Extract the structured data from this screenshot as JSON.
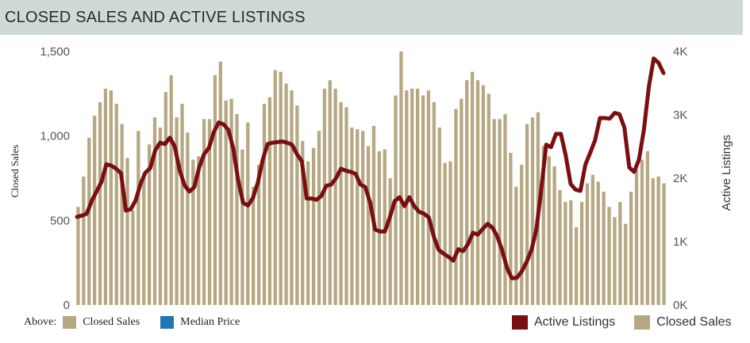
{
  "header": {
    "title": "CLOSED SALES AND ACTIVE LISTINGS"
  },
  "legend": {
    "above_label": "Above:",
    "left_items": [
      {
        "label": "Closed Sales",
        "color": "#b5a882"
      },
      {
        "label": "Median Price",
        "color": "#1f77b4"
      }
    ],
    "right_items": [
      {
        "label": "Active Listings",
        "color": "#7a0f12"
      },
      {
        "label": "Closed Sales",
        "color": "#b5a882"
      }
    ]
  },
  "chart_data": {
    "type": "bar",
    "title": "",
    "ylabel_left": "Closed Sales",
    "ylabel_right": "Active Listings",
    "y_left_ticks": [
      "0",
      "500",
      "1,000",
      "1,500"
    ],
    "y_right_ticks": [
      "0K",
      "1K",
      "2K",
      "3K",
      "4K"
    ],
    "ylim_left": [
      0,
      1500
    ],
    "ylim_right": [
      0,
      4000
    ],
    "grid": false,
    "series": [
      {
        "name": "Closed Sales",
        "type": "bar",
        "axis": "left",
        "color": "#b5a882",
        "values": [
          580,
          760,
          990,
          1120,
          1200,
          1280,
          1270,
          1190,
          1070,
          870,
          560,
          1030,
          780,
          950,
          1110,
          1050,
          1260,
          1360,
          1110,
          1190,
          1020,
          860,
          880,
          1100,
          1100,
          1360,
          1440,
          1210,
          1220,
          1130,
          920,
          1080,
          700,
          830,
          1190,
          1230,
          1390,
          1380,
          1310,
          1270,
          1180,
          970,
          850,
          930,
          1030,
          1280,
          1330,
          1280,
          1200,
          1170,
          1050,
          1040,
          1030,
          940,
          1060,
          910,
          920,
          750,
          1240,
          1500,
          1270,
          1280,
          1280,
          1240,
          1270,
          1200,
          1050,
          840,
          850,
          1160,
          1220,
          1330,
          1380,
          1330,
          1300,
          1250,
          1100,
          1100,
          1130,
          900,
          700,
          830,
          1070,
          1110,
          1140,
          940,
          880,
          820,
          680,
          610,
          620,
          460,
          610,
          720,
          770,
          730,
          670,
          580,
          520,
          610,
          480,
          670,
          800,
          860,
          910,
          750,
          760,
          720
        ]
      },
      {
        "name": "Active Listings",
        "type": "line",
        "axis": "right",
        "color": "#7a0f12",
        "values": [
          1390,
          1410,
          1440,
          1640,
          1790,
          1940,
          2220,
          2200,
          2150,
          2080,
          1490,
          1510,
          1650,
          1910,
          2090,
          2160,
          2440,
          2560,
          2540,
          2640,
          2500,
          2130,
          1890,
          1790,
          1860,
          2170,
          2380,
          2480,
          2730,
          2880,
          2850,
          2760,
          2460,
          1960,
          1610,
          1570,
          1690,
          1930,
          2290,
          2540,
          2560,
          2570,
          2580,
          2560,
          2530,
          2380,
          2270,
          1680,
          1680,
          1660,
          1720,
          1880,
          1900,
          2000,
          2150,
          2120,
          2100,
          2070,
          1900,
          1860,
          1610,
          1190,
          1160,
          1160,
          1380,
          1640,
          1700,
          1560,
          1700,
          1560,
          1470,
          1440,
          1380,
          1080,
          870,
          810,
          760,
          700,
          880,
          850,
          960,
          1140,
          1110,
          1200,
          1280,
          1220,
          1080,
          860,
          580,
          420,
          430,
          530,
          680,
          870,
          1200,
          1830,
          2530,
          2490,
          2700,
          2700,
          2360,
          1910,
          1820,
          1800,
          2210,
          2400,
          2600,
          2950,
          2950,
          2940,
          3030,
          3010,
          2800,
          2170,
          2100,
          2300,
          2770,
          3440,
          3890,
          3820,
          3660
        ]
      }
    ],
    "legend_position": "bottom"
  }
}
